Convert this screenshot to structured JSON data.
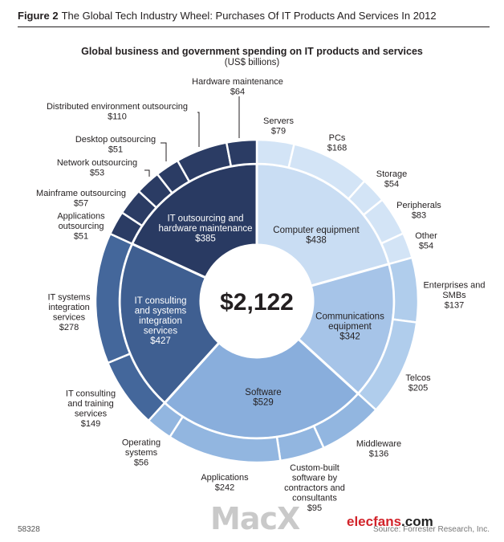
{
  "figure": {
    "label": "Figure 2",
    "caption": "The Global Tech Industry Wheel: Purchases Of IT Products And Services In 2012"
  },
  "footer": {
    "id": "58328",
    "source": "Source: Forrester Research, Inc.",
    "watermark": "MacX",
    "brand_name": "elecfans",
    "brand_tld": ".com"
  },
  "colors": {
    "outsourcing_inner": "#293a62",
    "outsourcing_outer": "#2b3c64",
    "consulting_inner": "#3f5f91",
    "consulting_outer": "#44679b",
    "software_inner": "#89aedc",
    "software_outer": "#92b6e0",
    "comms_inner": "#a6c4e8",
    "comms_outer": "#b0cdec",
    "computer_inner": "#c9ddf3",
    "computer_outer": "#d3e4f6"
  },
  "chart_data": {
    "type": "pie",
    "title": "Global business and government spending on IT products and services",
    "subtitle": "(US$ billions)",
    "total_label": "$2,122",
    "total": 2122,
    "categories": [
      {
        "key": "computer",
        "label_lines": [
          "Computer equipment",
          "$438"
        ],
        "value": 438,
        "items": [
          {
            "label_lines": [
              "Servers",
              "$79"
            ],
            "value": 79
          },
          {
            "label_lines": [
              "PCs",
              "$168"
            ],
            "value": 168
          },
          {
            "label_lines": [
              "Storage",
              "$54"
            ],
            "value": 54
          },
          {
            "label_lines": [
              "Peripherals",
              "$83"
            ],
            "value": 83
          },
          {
            "label_lines": [
              "Other",
              "$54"
            ],
            "value": 54
          }
        ]
      },
      {
        "key": "comms",
        "label_lines": [
          "Communications",
          "equipment",
          "$342"
        ],
        "value": 342,
        "items": [
          {
            "label_lines": [
              "Enterprises and",
              "SMBs",
              "$137"
            ],
            "value": 137
          },
          {
            "label_lines": [
              "Telcos",
              "$205"
            ],
            "value": 205
          }
        ]
      },
      {
        "key": "software",
        "label_lines": [
          "Software",
          "$529"
        ],
        "value": 529,
        "items": [
          {
            "label_lines": [
              "Middleware",
              "$136"
            ],
            "value": 136
          },
          {
            "label_lines": [
              "Custom-built",
              "software by",
              "contractors and",
              "consultants",
              "$95"
            ],
            "value": 95
          },
          {
            "label_lines": [
              "Applications",
              "$242"
            ],
            "value": 242
          },
          {
            "label_lines": [
              "Operating",
              "systems",
              "$56"
            ],
            "value": 56
          }
        ]
      },
      {
        "key": "consulting",
        "label_lines": [
          "IT consulting",
          "and systems",
          "integration",
          "services",
          "$427"
        ],
        "value": 427,
        "items": [
          {
            "label_lines": [
              "IT consulting",
              "and training",
              "services",
              "$149"
            ],
            "value": 149
          },
          {
            "label_lines": [
              "IT systems",
              "integration",
              "services",
              "$278"
            ],
            "value": 278
          }
        ]
      },
      {
        "key": "outsourcing",
        "label_lines": [
          "IT outsourcing and",
          "hardware maintenance",
          "$385"
        ],
        "value": 385,
        "items": [
          {
            "label_lines": [
              "Applications",
              "outsourcing",
              "$51"
            ],
            "value": 51
          },
          {
            "label_lines": [
              "Mainframe outsourcing",
              "$57"
            ],
            "value": 57
          },
          {
            "label_lines": [
              "Network outsourcing",
              "$53"
            ],
            "value": 53
          },
          {
            "label_lines": [
              "Desktop outsourcing",
              "$51"
            ],
            "value": 51
          },
          {
            "label_lines": [
              "Distributed environment outsourcing",
              "$110"
            ],
            "value": 110
          },
          {
            "label_lines": [
              "Hardware maintenance",
              "$64"
            ],
            "value": 64
          }
        ]
      }
    ]
  }
}
